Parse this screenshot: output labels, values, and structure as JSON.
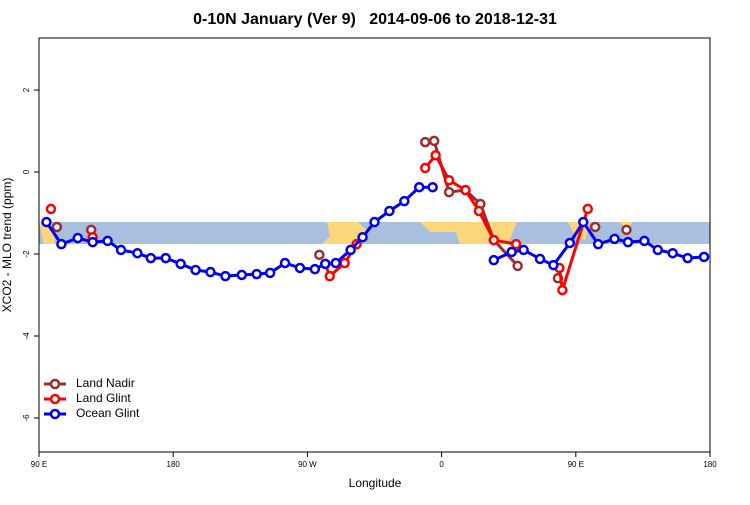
{
  "chart_data": {
    "type": "line",
    "title": "0-10N January (Ver 9)   2014-09-06 to 2018-12-31",
    "xlabel": "Longitude",
    "ylabel": "XCO2 - MLO trend (ppm)",
    "xlim": [
      90,
      540
    ],
    "ylim": [
      -6.83,
      3.27
    ],
    "xticks": [
      {
        "value": 90,
        "label": "90 E"
      },
      180,
      {
        "value": 270,
        "label": "90 W"
      },
      {
        "value": 360,
        "label": "0"
      },
      {
        "value": 450,
        "label": "90 E"
      },
      {
        "value": 540,
        "label": "180"
      }
    ],
    "yticks": [
      -6,
      -4,
      -2,
      0,
      2
    ],
    "legend": "bottom-left",
    "series": [
      {
        "name": "Land Nadir",
        "color": "#9b2d30",
        "x": [
          102,
          null,
          125,
          null,
          278,
          null,
          349,
          355,
          365,
          376,
          386,
          395,
          411,
          null,
          438,
          null,
          463,
          null,
          484
        ],
        "values": [
          -1.34,
          null,
          -1.41,
          null,
          -2.02,
          null,
          0.73,
          0.76,
          -0.49,
          -0.44,
          -0.78,
          -1.66,
          -2.29,
          null,
          -2.59,
          null,
          -1.34,
          null,
          -1.41
        ]
      },
      {
        "name": "Land Glint",
        "color": "#ff0000",
        "x": [
          98,
          null,
          126,
          null,
          282,
          285,
          295,
          303,
          null,
          349,
          356,
          365,
          376,
          385,
          395,
          410,
          null,
          439,
          441,
          458
        ],
        "values": [
          -0.9,
          null,
          -1.59,
          null,
          -2.24,
          -2.54,
          -2.22,
          -1.76,
          null,
          0.1,
          0.41,
          -0.2,
          -0.44,
          -0.95,
          -1.66,
          -1.76,
          null,
          -2.34,
          -2.88,
          -0.9
        ]
      },
      {
        "name": "Ocean Glint",
        "color": "#0000ee",
        "x": [
          95,
          105,
          116,
          126,
          136,
          145,
          156,
          165,
          175,
          185,
          195,
          205,
          215,
          226,
          236,
          245,
          255,
          265,
          275,
          282,
          289,
          299,
          307,
          315,
          325,
          335,
          345,
          354,
          null,
          395,
          407,
          415,
          426,
          435,
          446,
          455,
          465,
          476,
          485,
          496,
          505,
          515,
          525,
          536
        ],
        "values": [
          -1.22,
          -1.76,
          -1.61,
          -1.71,
          -1.68,
          -1.9,
          -1.98,
          -2.1,
          -2.1,
          -2.24,
          -2.39,
          -2.44,
          -2.54,
          -2.51,
          -2.49,
          -2.46,
          -2.22,
          -2.34,
          -2.37,
          -2.24,
          -2.22,
          -1.9,
          -1.59,
          -1.22,
          -0.95,
          -0.71,
          -0.37,
          -0.37,
          null,
          -2.15,
          -1.95,
          -1.9,
          -2.12,
          -2.27,
          -1.73,
          -1.22,
          -1.76,
          -1.63,
          -1.71,
          -1.68,
          -1.9,
          -1.98,
          -2.1,
          -2.07
        ]
      }
    ]
  }
}
